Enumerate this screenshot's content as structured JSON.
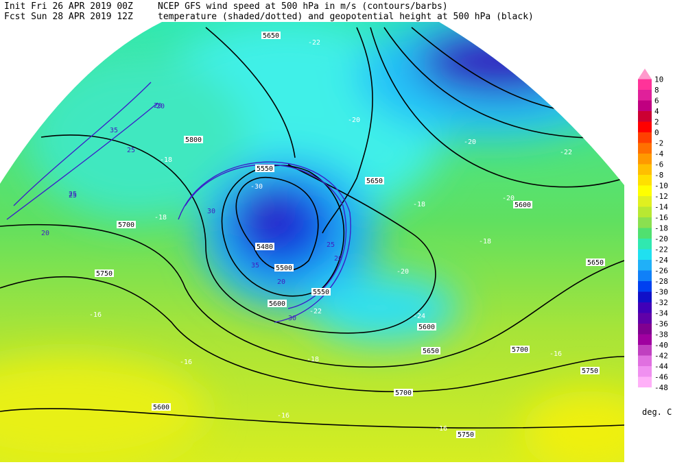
{
  "header": {
    "line1_left": "Init  Fri 26 APR 2019 00Z",
    "line1_right": "NCEP GFS wind speed at 500 hPa in m/s (contours/barbs)",
    "line2_left": "Fcst Sun 28 APR 2019 12Z",
    "line2_right": "temperature (shaded/dotted) and geopotential height at 500 hPa (black)"
  },
  "legend": {
    "levels": [
      10,
      8,
      6,
      4,
      2,
      0,
      -2,
      -4,
      -6,
      -8,
      -10,
      -12,
      -14,
      -16,
      -18,
      -20,
      -22,
      -24,
      -26,
      -28,
      -30,
      -32,
      -34,
      -36,
      -38,
      -40,
      -42,
      -44,
      -46,
      -48
    ],
    "colors": [
      "#ff99cc",
      "#ff3399",
      "#e0209a",
      "#c00080",
      "#cc0033",
      "#ff0000",
      "#ff4000",
      "#ff7000",
      "#ff9900",
      "#ffbf00",
      "#ffe000",
      "#ffff00",
      "#e0f020",
      "#b8e832",
      "#8ae050",
      "#50e070",
      "#30e8b0",
      "#20e0f0",
      "#20b0f8",
      "#1080f8",
      "#0040f0",
      "#1010c8",
      "#4000b8",
      "#6000a8",
      "#800090",
      "#a000a0",
      "#c040c0",
      "#e070e0",
      "#f090f0",
      "#ffb0f8"
    ],
    "unit": "deg. C"
  },
  "contour_labels": {
    "height": [
      5650,
      5800,
      5650,
      5700,
      5750,
      5480,
      5500,
      5550,
      5600,
      5650,
      5700,
      5750,
      5700,
      5600,
      5750,
      5650,
      5600,
      5550,
      5600
    ],
    "temperature": [
      -22,
      -20,
      -20,
      -22,
      -20,
      -18,
      -18,
      -16,
      -16,
      -16,
      -16,
      -16,
      -18,
      -18,
      -18,
      -20,
      -24,
      -22,
      -30
    ],
    "wind": [
      20,
      25,
      35,
      25,
      20,
      30,
      35,
      20,
      25,
      30,
      20,
      25,
      20
    ]
  }
}
